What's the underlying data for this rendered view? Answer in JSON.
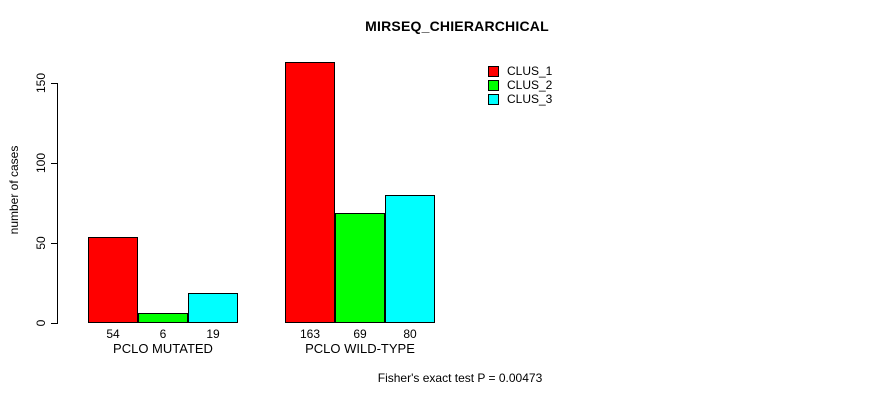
{
  "title": "MIRSEQ_CHIERARCHICAL",
  "caption": "Fisher's exact test P = 0.00473",
  "chart_data": {
    "type": "bar",
    "title": "MIRSEQ_CHIERARCHICAL",
    "categories": [
      "PCLO MUTATED",
      "PCLO WILD-TYPE"
    ],
    "series": [
      {
        "name": "CLUS_1",
        "color": "#ff0000",
        "values": [
          54,
          163
        ]
      },
      {
        "name": "CLUS_2",
        "color": "#00ff00",
        "values": [
          6,
          69
        ]
      },
      {
        "name": "CLUS_3",
        "color": "#00ffff",
        "values": [
          19,
          80
        ]
      }
    ],
    "xlabel": "",
    "ylabel": "number of cases",
    "ylim": [
      0,
      165
    ],
    "yticks": [
      0,
      50,
      100,
      150
    ],
    "bar_value_labels_shown": true,
    "bar_edge_color": "#000000",
    "legend_position": "top-right",
    "grid": false,
    "annotation": "Fisher's exact test P = 0.00473"
  }
}
